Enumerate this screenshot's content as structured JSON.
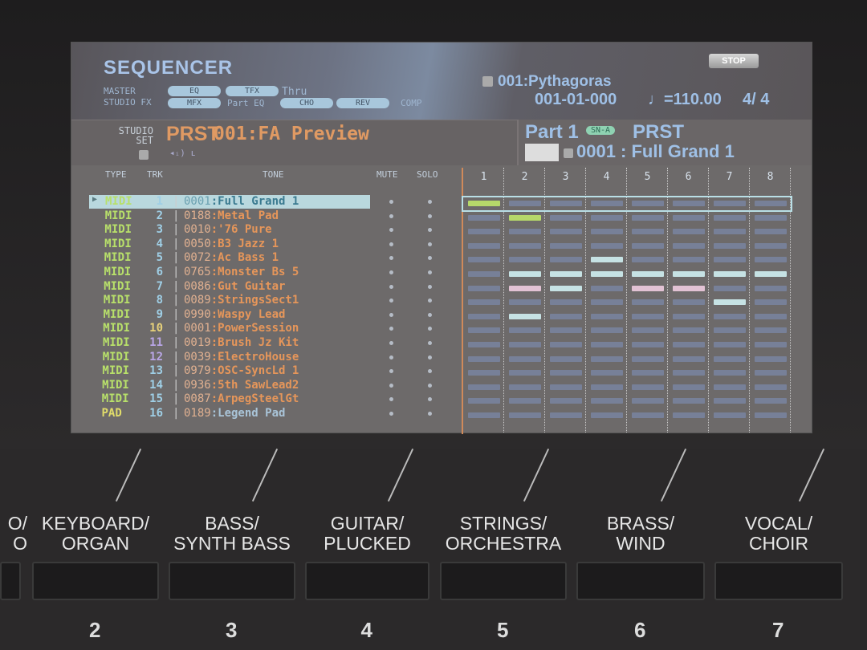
{
  "header": {
    "title": "SEQUENCER",
    "stop_label": "STOP",
    "master_label": "MASTER",
    "studio_fx_label": "STUDIO FX",
    "eq": "EQ",
    "tfx": "TFX",
    "thru": "Thru",
    "mfx": "MFX",
    "part_eq": "Part EQ",
    "cho": "CHO",
    "rev": "REV",
    "comp": "COMP",
    "song": "001:Pythagoras",
    "position": "001-01-000",
    "tempo": "♩=110.00",
    "time_sig": "4/ 4"
  },
  "studio_set": {
    "label1": "STUDIO",
    "label2": "SET",
    "bank": "PRST",
    "name": "001:FA Preview"
  },
  "part": {
    "label": "Part 1",
    "badge": "SN-A",
    "bank": "PRST",
    "tone": "0001 : Full Grand 1"
  },
  "columns": {
    "type": "TYPE",
    "trk": "TRK",
    "tone": "TONE",
    "mute": "MUTE",
    "solo": "SOLO",
    "clips": [
      "1",
      "2",
      "3",
      "4",
      "5",
      "6",
      "7",
      "8"
    ]
  },
  "tracks": [
    {
      "type": "MIDI",
      "trk": "1",
      "num": "0001",
      "name": ":Full Grand 1",
      "selected": true
    },
    {
      "type": "MIDI",
      "trk": "2",
      "num": "0188",
      "name": ":Metal Pad"
    },
    {
      "type": "MIDI",
      "trk": "3",
      "num": "0010",
      "name": ":'76 Pure"
    },
    {
      "type": "MIDI",
      "trk": "4",
      "num": "0050",
      "name": ":B3 Jazz 1"
    },
    {
      "type": "MIDI",
      "trk": "5",
      "num": "0072",
      "name": ":Ac Bass 1"
    },
    {
      "type": "MIDI",
      "trk": "6",
      "num": "0765",
      "name": ":Monster Bs 5"
    },
    {
      "type": "MIDI",
      "trk": "7",
      "num": "0086",
      "name": ":Gut Guitar"
    },
    {
      "type": "MIDI",
      "trk": "8",
      "num": "0089",
      "name": ":StringsSect1"
    },
    {
      "type": "MIDI",
      "trk": "9",
      "num": "0990",
      "name": ":Waspy Lead"
    },
    {
      "type": "MIDI",
      "trk": "10",
      "num": "0001",
      "name": ":PowerSession"
    },
    {
      "type": "MIDI",
      "trk": "11",
      "num": "0019",
      "name": ":Brush Jz Kit"
    },
    {
      "type": "MIDI",
      "trk": "12",
      "num": "0039",
      "name": ":ElectroHouse"
    },
    {
      "type": "MIDI",
      "trk": "13",
      "num": "0979",
      "name": ":OSC-SyncLd 1"
    },
    {
      "type": "MIDI",
      "trk": "14",
      "num": "0936",
      "name": ":5th SawLead2"
    },
    {
      "type": "MIDI",
      "trk": "15",
      "num": "0087",
      "name": ":ArpegSteelGt"
    },
    {
      "type": "PAD",
      "trk": "16",
      "num": "0189",
      "name": ":Legend Pad"
    }
  ],
  "clip_grid": [
    [
      "play",
      "",
      "",
      "",
      "",
      "",
      "",
      ""
    ],
    [
      "",
      "play",
      "",
      "",
      "",
      "",
      "",
      ""
    ],
    [
      "",
      "",
      "",
      "",
      "",
      "",
      "",
      ""
    ],
    [
      "",
      "",
      "",
      "",
      "",
      "",
      "",
      ""
    ],
    [
      "",
      "",
      "",
      "clip",
      "",
      "",
      "",
      ""
    ],
    [
      "",
      "clip",
      "clip",
      "clip",
      "clip",
      "clip",
      "clip",
      "clip"
    ],
    [
      "",
      "pink",
      "clip",
      "",
      "pink",
      "pink",
      "",
      ""
    ],
    [
      "",
      "",
      "",
      "",
      "",
      "",
      "clip",
      ""
    ],
    [
      "",
      "clip",
      "",
      "",
      "",
      "",
      "",
      ""
    ],
    [
      "",
      "",
      "",
      "",
      "",
      "",
      "",
      ""
    ],
    [
      "",
      "",
      "",
      "",
      "",
      "",
      "",
      ""
    ],
    [
      "",
      "",
      "",
      "",
      "",
      "",
      "",
      ""
    ],
    [
      "",
      "",
      "",
      "",
      "",
      "",
      "",
      ""
    ],
    [
      "",
      "",
      "",
      "",
      "",
      "",
      "",
      ""
    ],
    [
      "",
      "",
      "",
      "",
      "",
      "",
      "",
      ""
    ],
    [
      "",
      "",
      "",
      "",
      "",
      "",
      "",
      ""
    ]
  ],
  "colors": {
    "play": "#b6d86a",
    "clip": "#c6e2e4",
    "pink": "#e2c2d4",
    "empty": "#7f8fb8"
  },
  "buttons": [
    {
      "label": "O/\nO",
      "num": ""
    },
    {
      "label": "KEYBOARD/\nORGAN",
      "num": "2"
    },
    {
      "label": "BASS/\nSYNTH BASS",
      "num": "3"
    },
    {
      "label": "GUITAR/\nPLUCKED",
      "num": "4"
    },
    {
      "label": "STRINGS/\nORCHESTRA",
      "num": "5"
    },
    {
      "label": "BRASS/\nWIND",
      "num": "6"
    },
    {
      "label": "VOCAL/\nCHOIR",
      "num": "7"
    }
  ]
}
